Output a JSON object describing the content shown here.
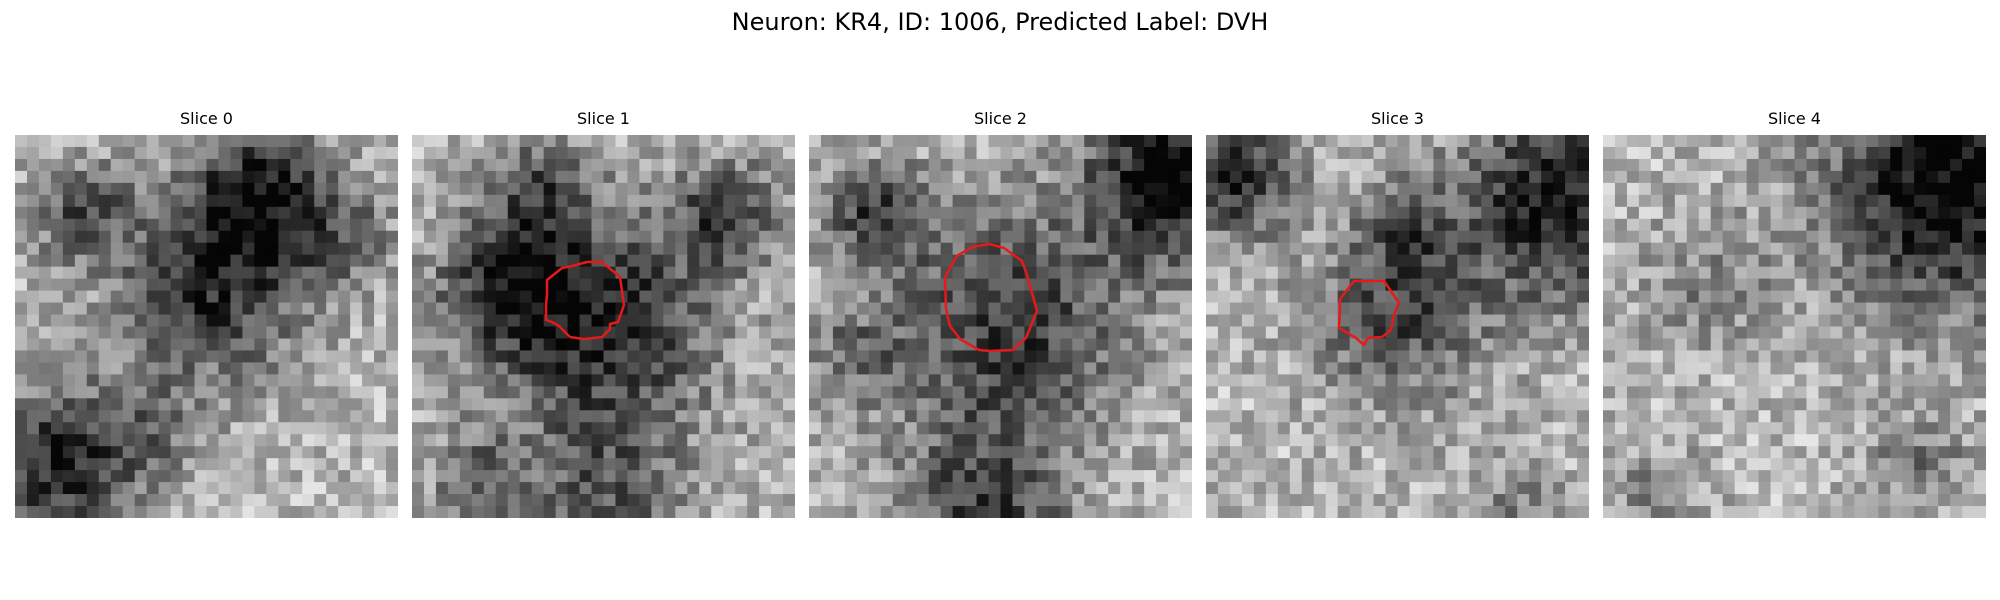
{
  "figure": {
    "title": "Neuron: KR4, ID: 1006, Predicted Label: DVH"
  },
  "slices": [
    {
      "title": "Slice 0",
      "has_contour": false
    },
    {
      "title": "Slice 1",
      "has_contour": true
    },
    {
      "title": "Slice 2",
      "has_contour": true
    },
    {
      "title": "Slice 3",
      "has_contour": true
    },
    {
      "title": "Slice 4",
      "has_contour": false
    }
  ],
  "colors": {
    "contour": "#e41a1c",
    "background": "#ffffff"
  }
}
